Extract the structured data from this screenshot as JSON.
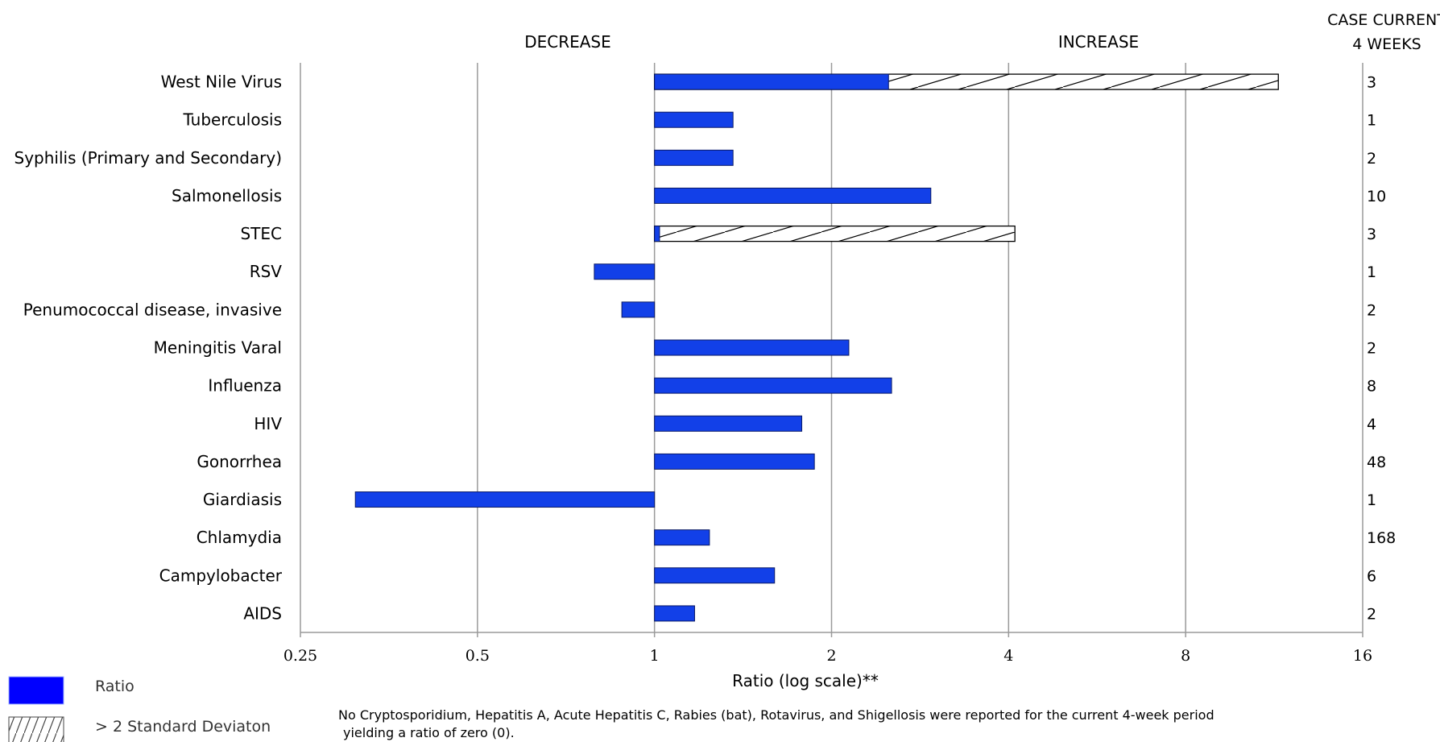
{
  "chart_data": {
    "type": "bar",
    "orientation": "horizontal",
    "scale": "log2",
    "xlim": [
      0.25,
      16
    ],
    "xticks": [
      "0.25",
      "0.5",
      "1",
      "2",
      "4",
      "8",
      "16"
    ],
    "xlabel": "Ratio (log scale)**",
    "left_header": "DECREASE",
    "right_header": "INCREASE",
    "cases_header_line1": "CASE CURRENT",
    "cases_header_line2": "4 WEEKS",
    "categories": [
      "West Nile Virus",
      "Tuberculosis",
      "Syphilis (Primary and Secondary)",
      "Salmonellosis",
      "STEC",
      "RSV",
      "Penumococcal disease, invasive",
      "Meningitis Varal",
      "Influenza",
      "HIV",
      "Gonorrhea",
      "Giardiasis",
      "Chlamydia",
      "Campylobacter",
      "AIDS"
    ],
    "series": [
      {
        "name": "Ratio",
        "values": [
          2.5,
          1.36,
          1.36,
          2.95,
          1.02,
          0.79,
          0.88,
          2.14,
          2.53,
          1.78,
          1.87,
          0.31,
          1.24,
          1.6,
          1.17
        ]
      },
      {
        "name": "> 2 Standard Deviaton",
        "values": [
          11.5,
          null,
          null,
          null,
          4.1,
          null,
          null,
          null,
          null,
          null,
          null,
          null,
          null,
          null,
          null
        ]
      }
    ],
    "cases": [
      "3",
      "1",
      "2",
      "10",
      "3",
      "1",
      "2",
      "2",
      "8",
      "4",
      "48",
      "1",
      "168",
      "6",
      "2"
    ],
    "grid": true,
    "legend_position": "bottom-left",
    "colors": {
      "ratio": "#1240e8",
      "legend_ratio": "#0000ff",
      "hatch_stroke": "#000000",
      "grid": "#9a9a9a"
    },
    "footnote_line1": "No Cryptosporidium, Hepatitis A, Acute Hepatitis C,  Rabies (bat), Rotavirus,  and Shigellosis were reported for the current 4-week period",
    "footnote_line2": "yielding a ratio of zero (0)."
  }
}
